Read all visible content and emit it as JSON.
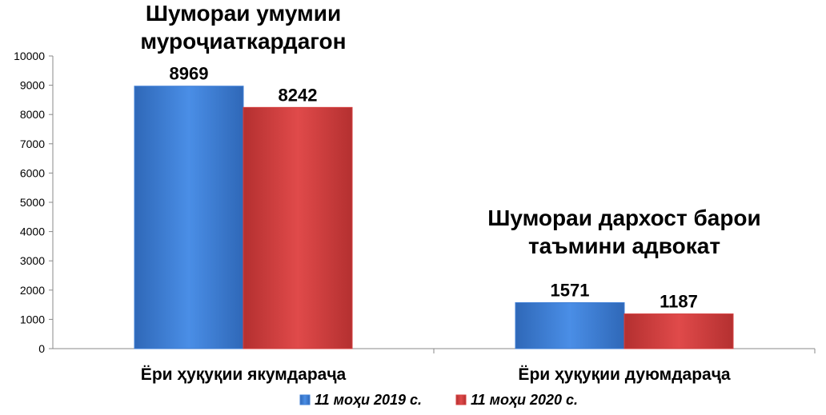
{
  "chart_data": {
    "type": "bar",
    "categories": [
      "Ёри ҳуқуқии якумдараҷа",
      "Ёри ҳуқуқии дуюмдараҷа"
    ],
    "series": [
      {
        "name": "11 моҳи 2019 с.",
        "values": [
          8969,
          1571
        ],
        "color": "#3f7fd6"
      },
      {
        "name": "11 моҳи 2020 с.",
        "values": [
          8242,
          1187
        ],
        "color": "#d53f3f"
      }
    ],
    "ylim": [
      0,
      10000
    ],
    "yticks": [
      "0",
      "1000",
      "2000",
      "3000",
      "4000",
      "5000",
      "6000",
      "7000",
      "8000",
      "9000",
      "10000"
    ],
    "grid": false,
    "legend": "bottom",
    "annotations": [
      {
        "lines": [
          "Шумораи умумии",
          "муроҷиаткардагон"
        ],
        "category": 0
      },
      {
        "lines": [
          "Шумораи дархост барои",
          "таъмини адвокат"
        ],
        "category": 1
      }
    ]
  }
}
